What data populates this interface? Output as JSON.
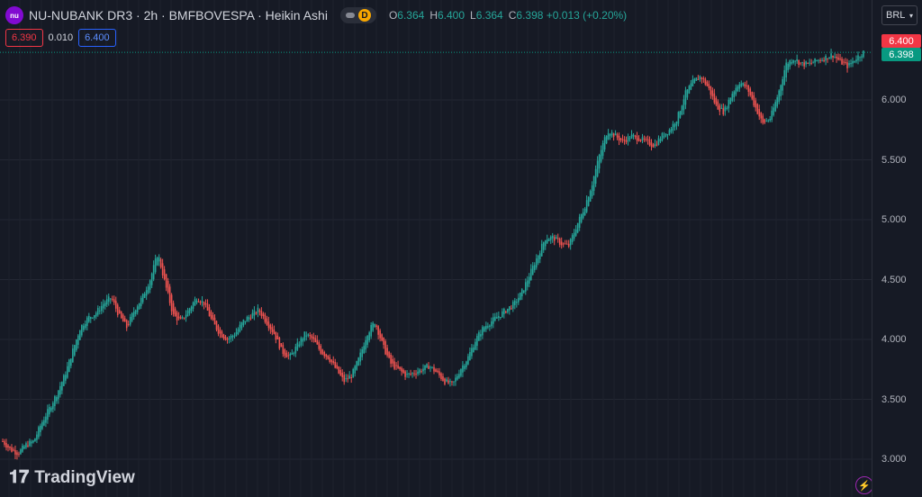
{
  "symbol": {
    "logo_text": "nu",
    "title": "NU-NUBANK DR3 · 2h · BMFBOVESPA · Heikin Ashi",
    "pill_badge": "D",
    "ohlc": [
      {
        "label": "O",
        "value": "6.364"
      },
      {
        "label": "H",
        "value": "6.400"
      },
      {
        "label": "L",
        "value": "6.364"
      },
      {
        "label": "C",
        "value": "6.398 +0.013 (+0.20%)"
      }
    ]
  },
  "quote": {
    "bid": "6.390",
    "spread": "0.010",
    "ask": "6.400"
  },
  "price_axis": {
    "currency": "BRL",
    "ticks": [
      "6.000",
      "5.500",
      "5.000",
      "4.500",
      "4.000",
      "3.500",
      "3.000"
    ],
    "high_tag": "6.400",
    "last_tag": "6.398"
  },
  "watermark": "TradingView",
  "colors": {
    "up": "#26a69a",
    "down": "#ef5350",
    "background": "#161a25"
  },
  "chart_data": {
    "type": "candlestick",
    "style": "Heikin Ashi",
    "interval": "2h",
    "y_range": [
      2.98,
      6.45
    ],
    "grid": true,
    "close_path": [
      3.15,
      3.08,
      3.05,
      3.12,
      3.15,
      3.3,
      3.42,
      3.55,
      3.7,
      3.9,
      4.1,
      4.18,
      4.22,
      4.3,
      4.35,
      4.2,
      4.1,
      4.25,
      4.35,
      4.5,
      4.72,
      4.45,
      4.2,
      4.15,
      4.25,
      4.35,
      4.3,
      4.15,
      4.05,
      4.0,
      4.05,
      4.15,
      4.2,
      4.25,
      4.15,
      4.05,
      3.9,
      3.85,
      3.95,
      4.05,
      4.0,
      3.9,
      3.85,
      3.75,
      3.65,
      3.7,
      3.85,
      4.05,
      4.15,
      3.95,
      3.8,
      3.75,
      3.7,
      3.72,
      3.75,
      3.78,
      3.72,
      3.65,
      3.62,
      3.75,
      3.85,
      4.0,
      4.1,
      4.15,
      4.2,
      4.25,
      4.3,
      4.4,
      4.55,
      4.7,
      4.85,
      4.85,
      4.8,
      4.78,
      4.95,
      5.1,
      5.3,
      5.55,
      5.75,
      5.7,
      5.65,
      5.7,
      5.68,
      5.65,
      5.62,
      5.7,
      5.75,
      5.85,
      6.05,
      6.15,
      6.2,
      6.1,
      5.95,
      5.9,
      6.05,
      6.15,
      6.1,
      5.95,
      5.8,
      5.85,
      6.05,
      6.3,
      6.35,
      6.3,
      6.3,
      6.33,
      6.35,
      6.38,
      6.32,
      6.28,
      6.35,
      6.398
    ]
  }
}
